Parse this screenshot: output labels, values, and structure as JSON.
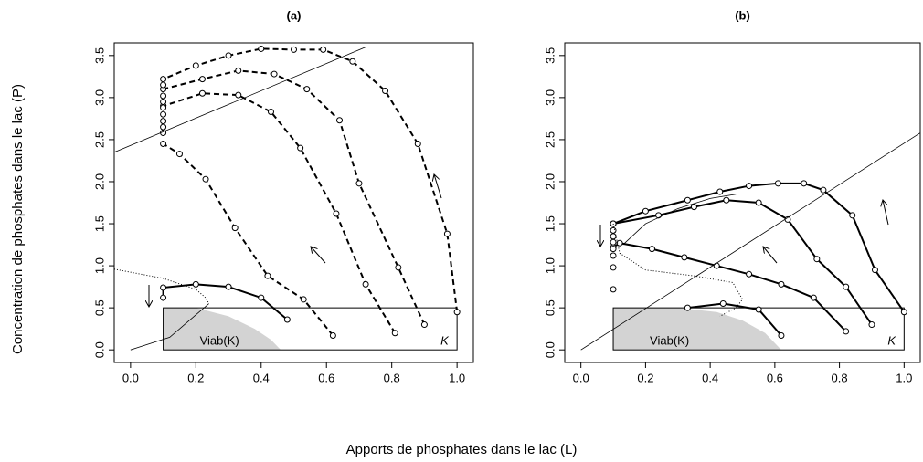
{
  "xlabel": "Apports de phosphates dans le lac  (L)",
  "ylabel": "Concentration de phosphates dans le lac  (P)",
  "chart_data": [
    {
      "type": "line",
      "title": "(a)",
      "xlim": [
        -0.05,
        1.05
      ],
      "ylim": [
        -0.15,
        3.65
      ],
      "xticks": [
        {
          "value": 0,
          "label": "0.0"
        },
        0.2,
        0.4,
        0.6,
        0.8,
        {
          "value": 1,
          "label": "1.0"
        }
      ],
      "yticks": [
        {
          "value": 0,
          "label": "0.0"
        },
        0.5,
        {
          "value": 1,
          "label": "1.0"
        },
        1.5,
        {
          "value": 2,
          "label": "2.0"
        },
        2.5,
        {
          "value": 3,
          "label": "3.0"
        },
        3.5
      ],
      "box": {
        "label": "K",
        "x": [
          0.1,
          1.0
        ],
        "y": [
          0,
          0.5
        ]
      },
      "viab": {
        "label": "Viab(K)",
        "x": [
          0.1,
          0.2,
          0.3,
          0.38,
          0.43,
          0.46
        ],
        "values": [
          0.5,
          0.5,
          0.4,
          0.25,
          0.12,
          0
        ]
      },
      "series": [
        {
          "style": "dashed",
          "markers": true,
          "x": [
            1.0,
            0.97,
            0.88,
            0.78,
            0.68,
            0.59,
            0.5,
            0.4,
            0.3,
            0.2,
            0.1
          ],
          "values": [
            0.45,
            1.38,
            2.45,
            3.08,
            3.43,
            3.57,
            3.57,
            3.58,
            3.5,
            3.38,
            3.22
          ]
        },
        {
          "style": "dashed",
          "markers": true,
          "x": [
            0.9,
            0.82,
            0.7,
            0.64,
            0.54,
            0.44,
            0.33,
            0.22,
            0.1
          ],
          "values": [
            0.3,
            0.98,
            1.98,
            2.73,
            3.1,
            3.28,
            3.32,
            3.22,
            3.1
          ]
        },
        {
          "style": "dashed",
          "markers": true,
          "x": [
            0.81,
            0.72,
            0.63,
            0.52,
            0.43,
            0.33,
            0.22,
            0.1
          ],
          "values": [
            0.2,
            0.78,
            1.62,
            2.4,
            2.83,
            3.03,
            3.05,
            2.9
          ]
        },
        {
          "style": "dashed",
          "markers": true,
          "x": [
            0.62,
            0.53,
            0.42,
            0.32,
            0.23,
            0.15,
            0.1
          ],
          "values": [
            0.17,
            0.6,
            0.88,
            1.45,
            2.03,
            2.33,
            2.45
          ]
        },
        {
          "style": "solid",
          "markers": true,
          "x": [
            0.48,
            0.4,
            0.3,
            0.2,
            0.1,
            0.1
          ],
          "values": [
            0.36,
            0.62,
            0.75,
            0.78,
            0.74,
            0.62
          ]
        },
        {
          "style": "points",
          "markers": true,
          "x": [
            0.1,
            0.1,
            0.1,
            0.1,
            0.1,
            0.1,
            0.1,
            0.1
          ],
          "values": [
            2.58,
            2.65,
            2.72,
            2.8,
            2.88,
            2.95,
            3.02,
            3.15
          ]
        },
        {
          "style": "thin",
          "markers": false,
          "x": [
            -0.05,
            0.72
          ],
          "values": [
            2.35,
            3.6
          ]
        },
        {
          "style": "thin",
          "markers": false,
          "x": [
            0,
            0.12,
            0.24
          ],
          "values": [
            0,
            0.15,
            0.55
          ]
        },
        {
          "style": "dotted",
          "markers": false,
          "x": [
            -0.05,
            0.1,
            0.2,
            0.23,
            0.24
          ],
          "values": [
            0.96,
            0.85,
            0.72,
            0.62,
            0.55
          ]
        }
      ],
      "annotations": [
        "K"
      ]
    },
    {
      "type": "line",
      "title": "(b)",
      "xlim": [
        -0.05,
        1.05
      ],
      "ylim": [
        -0.15,
        3.65
      ],
      "xticks": [
        {
          "value": 0,
          "label": "0.0"
        },
        0.2,
        0.4,
        0.6,
        0.8,
        {
          "value": 1,
          "label": "1.0"
        }
      ],
      "yticks": [
        {
          "value": 0,
          "label": "0.0"
        },
        0.5,
        {
          "value": 1,
          "label": "1.0"
        },
        1.5,
        {
          "value": 2,
          "label": "2.0"
        },
        2.5,
        {
          "value": 3,
          "label": "3.0"
        },
        3.5
      ],
      "box": {
        "label": "K",
        "x": [
          0.1,
          1.0
        ],
        "y": [
          0,
          0.5
        ]
      },
      "viab": {
        "label": "Viab(K)",
        "x": [
          0.1,
          0.3,
          0.42,
          0.5,
          0.57,
          0.62
        ],
        "values": [
          0.5,
          0.5,
          0.45,
          0.35,
          0.2,
          0
        ]
      },
      "series": [
        {
          "style": "solid",
          "markers": true,
          "x": [
            1.0,
            0.91,
            0.84,
            0.75,
            0.69,
            0.61,
            0.52,
            0.43,
            0.33,
            0.2,
            0.1
          ],
          "values": [
            0.45,
            0.95,
            1.6,
            1.9,
            1.98,
            1.98,
            1.95,
            1.88,
            1.78,
            1.65,
            1.5
          ]
        },
        {
          "style": "solid",
          "markers": true,
          "x": [
            0.9,
            0.82,
            0.73,
            0.64,
            0.55,
            0.45,
            0.35,
            0.24,
            0.1
          ],
          "values": [
            0.3,
            0.75,
            1.08,
            1.55,
            1.75,
            1.78,
            1.7,
            1.6,
            1.5
          ]
        },
        {
          "style": "solid",
          "markers": true,
          "x": [
            0.82,
            0.72,
            0.62,
            0.52,
            0.42,
            0.32,
            0.22,
            0.12,
            0.1
          ],
          "values": [
            0.22,
            0.62,
            0.78,
            0.9,
            1.0,
            1.1,
            1.2,
            1.27,
            1.22
          ]
        },
        {
          "style": "solid",
          "markers": true,
          "x": [
            0.62,
            0.55,
            0.44,
            0.33
          ],
          "values": [
            0.17,
            0.48,
            0.55,
            0.5
          ]
        },
        {
          "style": "points",
          "markers": true,
          "x": [
            0.1,
            0.1,
            0.1,
            0.1,
            0.1,
            0.1,
            0.1,
            0.1
          ],
          "values": [
            0.72,
            0.98,
            1.12,
            1.2,
            1.28,
            1.35,
            1.42,
            1.5
          ]
        },
        {
          "style": "thin",
          "markers": false,
          "x": [
            0,
            1.05
          ],
          "values": [
            0,
            2.58
          ]
        },
        {
          "style": "thin",
          "markers": false,
          "x": [
            0.13,
            0.2,
            0.3,
            0.4,
            0.48
          ],
          "values": [
            1.25,
            1.5,
            1.68,
            1.8,
            1.85
          ]
        },
        {
          "style": "dotted",
          "markers": false,
          "x": [
            0.1,
            0.12,
            0.2,
            0.35,
            0.47,
            0.5,
            0.48,
            0.43
          ],
          "values": [
            1.5,
            1.15,
            0.95,
            0.88,
            0.8,
            0.6,
            0.5,
            0.4
          ]
        }
      ],
      "annotations": [
        "K"
      ]
    }
  ]
}
